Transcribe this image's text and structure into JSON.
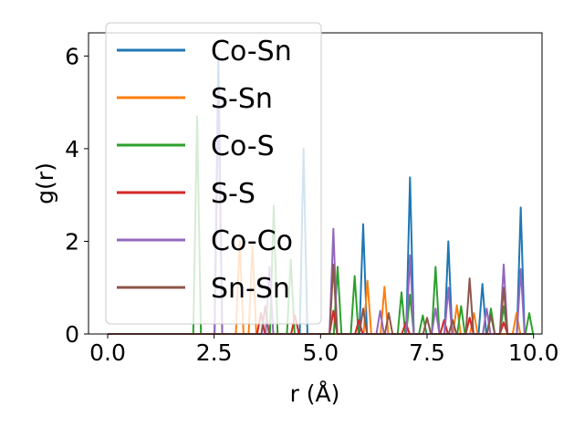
{
  "chart_data": {
    "type": "line",
    "title": "",
    "xlabel": "r (Å)",
    "ylabel": "g(r)",
    "xlim": [
      -0.45,
      10.2
    ],
    "ylim": [
      0,
      6.5
    ],
    "xticks": [
      0.0,
      2.5,
      5.0,
      7.5,
      10.0
    ],
    "xtick_labels": [
      "0.0",
      "2.5",
      "5.0",
      "7.5",
      "10.0"
    ],
    "yticks": [
      0,
      2,
      4,
      6
    ],
    "ytick_labels": [
      "0",
      "2",
      "4",
      "6"
    ],
    "grid": false,
    "legend_position": "upper-left",
    "series": [
      {
        "name": "Co-Sn",
        "color": "#1f77b4",
        "peaks": [
          [
            2.6,
            6.0
          ],
          [
            4.6,
            4.0
          ],
          [
            6.0,
            2.37
          ],
          [
            7.1,
            3.38
          ],
          [
            8.0,
            2.0
          ],
          [
            8.8,
            1.08
          ],
          [
            9.7,
            2.73
          ]
        ]
      },
      {
        "name": "S-Sn",
        "color": "#ff7f0e",
        "peaks": [
          [
            3.1,
            2.0
          ],
          [
            3.4,
            1.9
          ],
          [
            6.1,
            1.15
          ],
          [
            6.5,
            1.02
          ],
          [
            8.2,
            0.62
          ],
          [
            8.6,
            0.45
          ],
          [
            9.6,
            0.45
          ]
        ]
      },
      {
        "name": "Co-S",
        "color": "#2ca02c",
        "peaks": [
          [
            2.1,
            4.7
          ],
          [
            3.9,
            2.77
          ],
          [
            4.3,
            1.6
          ],
          [
            5.4,
            1.45
          ],
          [
            5.8,
            1.25
          ],
          [
            6.9,
            0.9
          ],
          [
            7.1,
            0.85
          ],
          [
            7.4,
            0.4
          ],
          [
            7.7,
            1.45
          ],
          [
            8.3,
            0.6
          ],
          [
            9.0,
            0.55
          ],
          [
            9.3,
            0.6
          ],
          [
            9.9,
            0.45
          ]
        ]
      },
      {
        "name": "S-S",
        "color": "#d62728",
        "peaks": [
          [
            3.6,
            0.45
          ],
          [
            4.4,
            0.4
          ],
          [
            5.3,
            0.5
          ],
          [
            5.9,
            0.3
          ],
          [
            7.0,
            0.25
          ],
          [
            7.9,
            0.3
          ],
          [
            8.5,
            0.35
          ],
          [
            9.3,
            0.25
          ]
        ]
      },
      {
        "name": "Co-Co",
        "color": "#9467bd",
        "peaks": [
          [
            2.6,
            5.2
          ],
          [
            3.8,
            1.45
          ],
          [
            5.3,
            2.27
          ],
          [
            6.4,
            0.5
          ],
          [
            7.1,
            1.7
          ],
          [
            7.7,
            0.55
          ],
          [
            8.0,
            1.0
          ],
          [
            8.9,
            0.55
          ],
          [
            9.3,
            1.5
          ],
          [
            9.7,
            1.4
          ]
        ]
      },
      {
        "name": "Sn-Sn",
        "color": "#8c564b",
        "peaks": [
          [
            3.7,
            0.6
          ],
          [
            5.3,
            1.5
          ],
          [
            6.0,
            0.55
          ],
          [
            6.6,
            0.45
          ],
          [
            7.5,
            0.35
          ],
          [
            8.1,
            0.3
          ],
          [
            8.5,
            1.2
          ],
          [
            9.0,
            0.4
          ],
          [
            9.3,
            1.0
          ]
        ]
      }
    ]
  }
}
